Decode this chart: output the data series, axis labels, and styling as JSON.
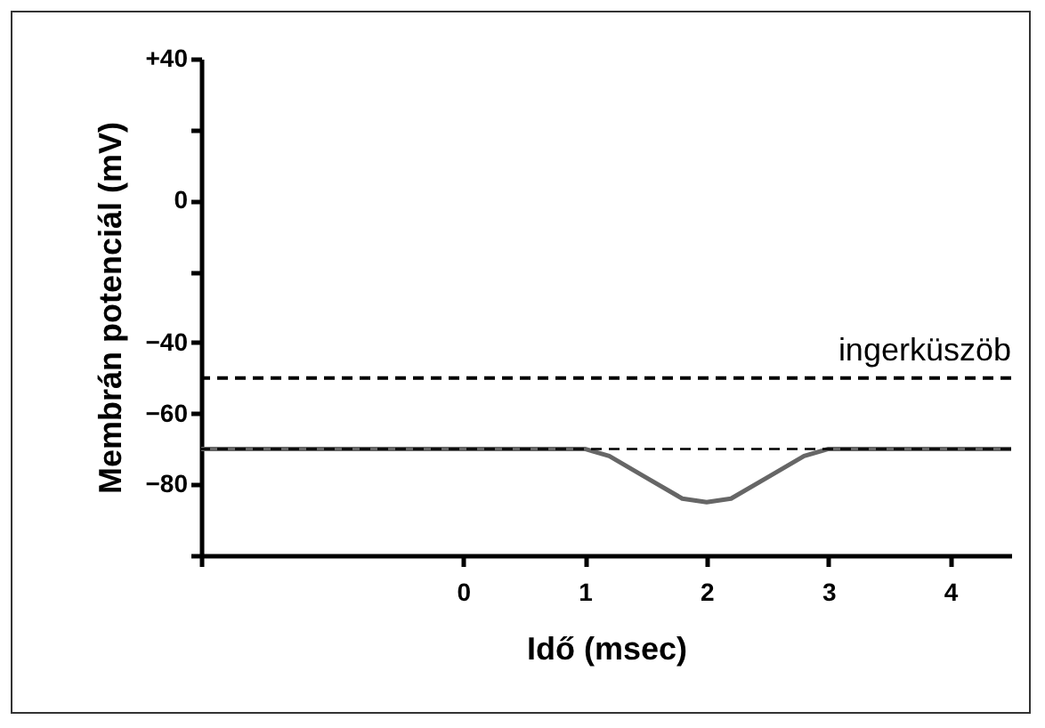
{
  "chart_data": {
    "type": "line",
    "xlabel": "Idő (msec)",
    "ylabel": "Membrán potenciál (mV)",
    "xlim": [
      -2.15,
      4.5
    ],
    "xticks": [
      {
        "value": -2.15,
        "label": null
      },
      0,
      1,
      2,
      3,
      4
    ],
    "ylim": [
      -100,
      40
    ],
    "yticks": [
      {
        "value": -100,
        "label": null
      },
      -80,
      -60,
      -40,
      {
        "value": -20,
        "label": null
      },
      0,
      {
        "value": 20,
        "label": null
      },
      {
        "value": 40,
        "label": "+40"
      }
    ],
    "grid": false,
    "series": [
      {
        "color": "#666666",
        "x": [
          -2.15,
          0,
          1,
          1.2,
          1.5,
          1.8,
          2,
          2.2,
          2.5,
          2.8,
          3,
          4.5
        ],
        "values": [
          -70,
          -70,
          -70,
          -72,
          -78,
          -84,
          -85,
          -84,
          -78,
          -72,
          -70,
          -70
        ]
      }
    ],
    "ref_lines": [
      {
        "axis": "y",
        "value": -50,
        "label": "ingerküszöb",
        "color": "#000000",
        "line_style": "dashed"
      },
      {
        "axis": "y",
        "value": -70,
        "color": "#000000",
        "line_style": "dashed"
      }
    ]
  }
}
